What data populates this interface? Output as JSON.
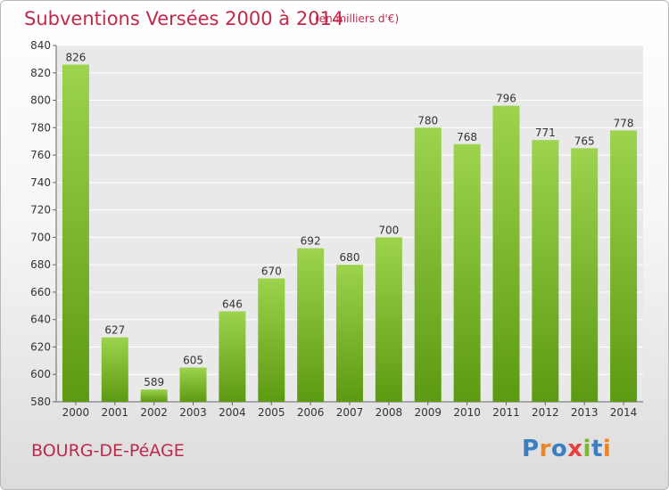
{
  "title": "Subventions Versées 2000 à 2014",
  "subtitle": "(en milliers d'€)",
  "city": "BOURG-DE-PéAGE",
  "logo": {
    "text": "Proxiti",
    "colors": [
      "#3a7fc4",
      "#e8862a",
      "#3a7fc4",
      "#e84040",
      "#7cb82f",
      "#3a7fc4",
      "#e8862a"
    ]
  },
  "colors": {
    "title": "#c0294a",
    "bar_top": "#9dd34d",
    "bar_bottom": "#5c9a12"
  },
  "chart_data": {
    "type": "bar",
    "categories": [
      "2000",
      "2001",
      "2002",
      "2003",
      "2004",
      "2005",
      "2006",
      "2007",
      "2008",
      "2009",
      "2010",
      "2011",
      "2012",
      "2013",
      "2014"
    ],
    "values": [
      826,
      627,
      589,
      605,
      646,
      670,
      692,
      680,
      700,
      780,
      768,
      796,
      771,
      765,
      778
    ],
    "ylim": [
      580,
      840
    ],
    "yticks": [
      580,
      600,
      620,
      640,
      660,
      680,
      700,
      720,
      740,
      760,
      780,
      800,
      820,
      840
    ],
    "grid": true
  }
}
